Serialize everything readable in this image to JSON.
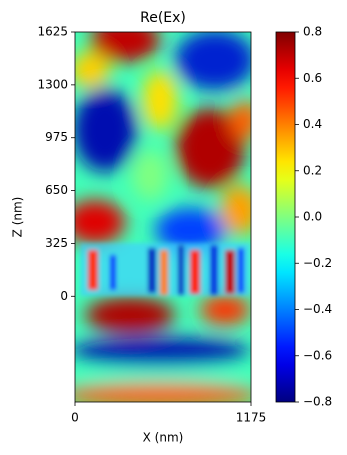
{
  "chart_data": {
    "type": "heatmap",
    "title": "Re(Ex)",
    "x_label": "X (nm)",
    "y_label": "Z (nm)",
    "xlim": [
      0,
      1175
    ],
    "xticks": [
      0,
      1175
    ],
    "ylim": [
      -650,
      1625
    ],
    "yticks": [
      0,
      325,
      650,
      975,
      1300,
      1625
    ],
    "colormap": "jet",
    "clim": [
      -0.8,
      0.8
    ],
    "cticks": [
      {
        "value": -0.8,
        "label": "−0.8"
      },
      {
        "value": -0.6,
        "label": "−0.6"
      },
      {
        "value": -0.4,
        "label": "−0.4"
      },
      {
        "value": -0.2,
        "label": "−0.2"
      },
      {
        "value": 0,
        "label": "0.0"
      },
      0.2,
      0.4,
      0.6,
      0.8
    ]
  }
}
